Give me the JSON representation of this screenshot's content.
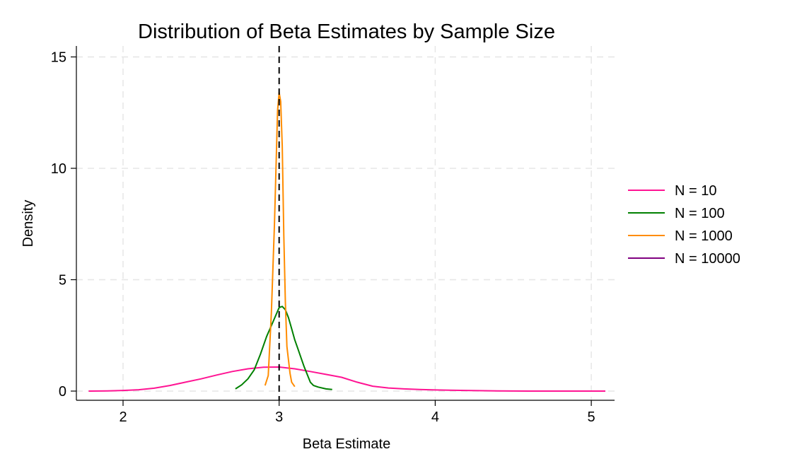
{
  "chart_data": {
    "type": "line",
    "title": "Distribution of Beta Estimates by Sample Size",
    "xlabel": "Beta Estimate",
    "ylabel": "Density",
    "xlim": [
      1.75,
      5.15
    ],
    "ylim": [
      -0.45,
      15.5
    ],
    "xticks": [
      2,
      3,
      4,
      5
    ],
    "yticks": [
      0,
      5,
      10,
      15
    ],
    "grid": true,
    "legend_position": "right",
    "reference_line": {
      "x": 3,
      "style": "dashed",
      "color": "#000000"
    },
    "series": [
      {
        "name": "N = 10",
        "color": "#ff1493",
        "x": [
          1.78,
          1.9,
          2.0,
          2.1,
          2.2,
          2.3,
          2.4,
          2.5,
          2.6,
          2.7,
          2.8,
          2.9,
          3.0,
          3.1,
          3.2,
          3.3,
          3.4,
          3.5,
          3.6,
          3.7,
          3.8,
          3.9,
          4.0,
          4.2,
          4.4,
          4.6,
          4.8,
          5.0,
          5.09
        ],
        "y": [
          0.0,
          0.01,
          0.03,
          0.06,
          0.13,
          0.25,
          0.4,
          0.55,
          0.72,
          0.88,
          1.0,
          1.07,
          1.08,
          1.0,
          0.88,
          0.75,
          0.62,
          0.4,
          0.22,
          0.14,
          0.1,
          0.07,
          0.05,
          0.03,
          0.01,
          0.0,
          0.0,
          0.0,
          0.0
        ]
      },
      {
        "name": "N = 100",
        "color": "#008000",
        "x": [
          2.72,
          2.76,
          2.8,
          2.84,
          2.88,
          2.92,
          2.96,
          3.0,
          3.02,
          3.04,
          3.06,
          3.08,
          3.1,
          3.12,
          3.14,
          3.16,
          3.18,
          3.2,
          3.22,
          3.25,
          3.3,
          3.34
        ],
        "y": [
          0.1,
          0.28,
          0.55,
          0.95,
          1.65,
          2.45,
          3.1,
          3.75,
          3.8,
          3.65,
          3.3,
          2.8,
          2.3,
          1.9,
          1.5,
          1.1,
          0.75,
          0.4,
          0.25,
          0.18,
          0.1,
          0.07
        ]
      },
      {
        "name": "N = 1000",
        "color": "#ff8c00",
        "x": [
          2.91,
          2.93,
          2.95,
          2.97,
          2.99,
          3.0,
          3.01,
          3.02,
          3.03,
          3.04,
          3.05,
          3.07,
          3.08,
          3.1
        ],
        "y": [
          0.25,
          0.7,
          3.5,
          7.5,
          12.6,
          13.4,
          13.0,
          11.0,
          7.0,
          4.0,
          2.0,
          0.8,
          0.4,
          0.2
        ]
      },
      {
        "name": "N = 10000",
        "color": "#800080",
        "x": [],
        "y": []
      }
    ]
  }
}
